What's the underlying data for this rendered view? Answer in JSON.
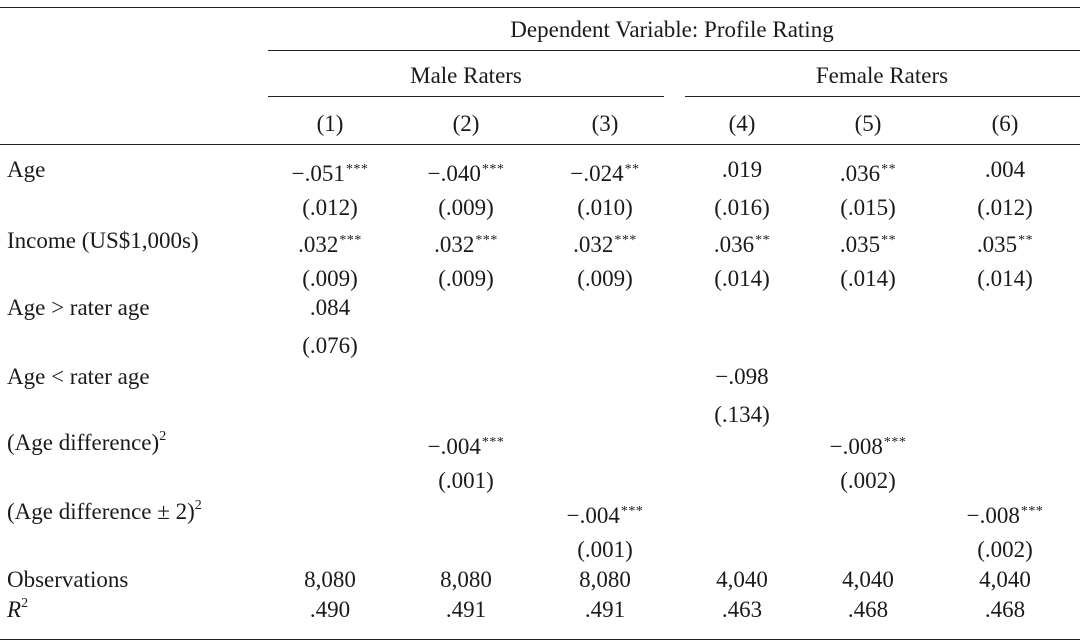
{
  "header": {
    "title": "Dependent Variable: Profile Rating",
    "groups": [
      "Male Raters",
      "Female Raters"
    ],
    "columns": [
      "(1)",
      "(2)",
      "(3)",
      "(4)",
      "(5)",
      "(6)"
    ]
  },
  "rows": [
    {
      "label": "Age",
      "coef": [
        {
          "v": "−.051",
          "s": "***"
        },
        {
          "v": "−.040",
          "s": "***"
        },
        {
          "v": "−.024",
          "s": "**"
        },
        {
          "v": ".019",
          "s": ""
        },
        {
          "v": ".036",
          "s": "**"
        },
        {
          "v": ".004",
          "s": ""
        }
      ],
      "se": [
        "(.012)",
        "(.009)",
        "(.010)",
        "(.016)",
        "(.015)",
        "(.012)"
      ]
    },
    {
      "label": "Income (US$1,000s)",
      "coef": [
        {
          "v": ".032",
          "s": "***"
        },
        {
          "v": ".032",
          "s": "***"
        },
        {
          "v": ".032",
          "s": "***"
        },
        {
          "v": ".036",
          "s": "**"
        },
        {
          "v": ".035",
          "s": "**"
        },
        {
          "v": ".035",
          "s": "**"
        }
      ],
      "se": [
        "(.009)",
        "(.009)",
        "(.009)",
        "(.014)",
        "(.014)",
        "(.014)"
      ]
    },
    {
      "label": "Age > rater age",
      "coef": [
        {
          "v": ".084",
          "s": ""
        },
        null,
        null,
        null,
        null,
        null
      ],
      "se": [
        "(.076)",
        "",
        "",
        "",
        "",
        ""
      ]
    },
    {
      "label": "Age < rater age",
      "coef": [
        null,
        null,
        null,
        {
          "v": "−.098",
          "s": ""
        },
        null,
        null
      ],
      "se": [
        "",
        "",
        "",
        "(.134)",
        "",
        ""
      ]
    },
    {
      "label": "(Age difference)",
      "label_sup": "2",
      "coef": [
        null,
        {
          "v": "−.004",
          "s": "***"
        },
        null,
        null,
        {
          "v": "−.008",
          "s": "***"
        },
        null
      ],
      "se": [
        "",
        "(.001)",
        "",
        "",
        "(.002)",
        ""
      ]
    },
    {
      "label": "(Age difference ± 2)",
      "label_sup": "2",
      "coef": [
        null,
        null,
        {
          "v": "−.004",
          "s": "***"
        },
        null,
        null,
        {
          "v": "−.008",
          "s": "***"
        }
      ],
      "se": [
        "",
        "",
        "(.001)",
        "",
        "",
        "(.002)"
      ]
    }
  ],
  "footer": {
    "observations_label": "Observations",
    "observations": [
      "8,080",
      "8,080",
      "8,080",
      "4,040",
      "4,040",
      "4,040"
    ],
    "r2_label": "R",
    "r2_sup": "2",
    "r2": [
      ".490",
      ".491",
      ".491",
      ".463",
      ".468",
      ".468"
    ]
  }
}
